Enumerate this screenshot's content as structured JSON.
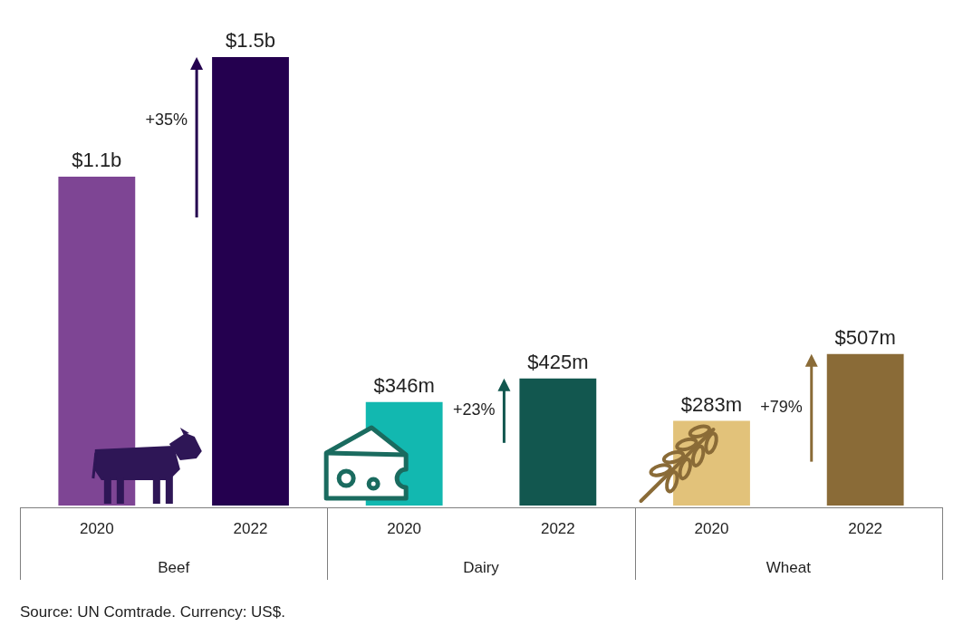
{
  "chart_data": {
    "type": "bar",
    "categories": [
      "2020",
      "2022",
      "2020",
      "2022",
      "2020",
      "2022"
    ],
    "groups": [
      "Beef",
      "Dairy",
      "Wheat"
    ],
    "values": [
      1100000000,
      1500000000,
      346000000,
      425000000,
      283000000,
      507000000
    ],
    "value_labels": [
      "$1.1b",
      "$1.5b",
      "$346m",
      "$425m",
      "$283m",
      "$507m"
    ],
    "colors": [
      "#7e4594",
      "#24004f",
      "#12b8b0",
      "#12574f",
      "#e2c27a",
      "#8a6b37"
    ],
    "annotations": [
      "+35%",
      "+23%",
      "+79%"
    ],
    "source": "Source: UN Comtrade. Currency: US$.",
    "ylim": [
      0,
      1500000000
    ],
    "data_labels": true,
    "tick_labels": "x",
    "grid": false
  }
}
